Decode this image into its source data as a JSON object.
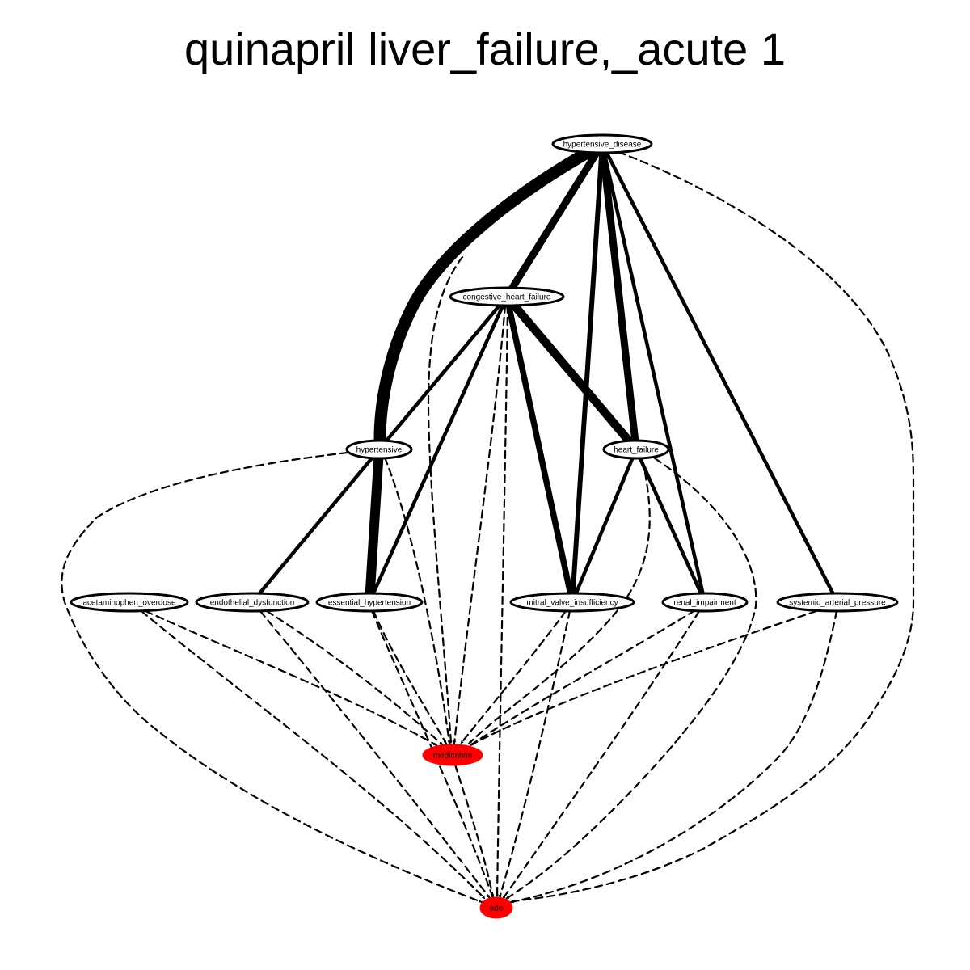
{
  "title": "quinapril liver_failure,_acute 1",
  "nodes": [
    {
      "id": "hypertensive_disease",
      "label": "hypertensive_disease",
      "fill": "#ffffff"
    },
    {
      "id": "congestive_heart_failure",
      "label": "congestive_heart_failure",
      "fill": "#ffffff"
    },
    {
      "id": "hypertensive",
      "label": "hypertensive",
      "fill": "#ffffff"
    },
    {
      "id": "heart_failure",
      "label": "heart_failure",
      "fill": "#ffffff"
    },
    {
      "id": "acetaminophen_overdose",
      "label": "acetaminophen_overdose",
      "fill": "#ffffff"
    },
    {
      "id": "endothelial_dysfunction",
      "label": "endothelial_dysfunction",
      "fill": "#ffffff"
    },
    {
      "id": "essential_hypertension",
      "label": "essential_hypertension",
      "fill": "#ffffff"
    },
    {
      "id": "mitral_valve_insufficiency",
      "label": "mitral_valve_insufficiency",
      "fill": "#ffffff"
    },
    {
      "id": "renal_impairment",
      "label": "renal_impairment",
      "fill": "#ffffff"
    },
    {
      "id": "systemic_arterial_pressure",
      "label": "systemic_arterial_pressure",
      "fill": "#ffffff"
    },
    {
      "id": "medication",
      "label": "medication",
      "fill": "#ff0000"
    },
    {
      "id": "ade",
      "label": "ade",
      "fill": "#ff0000"
    }
  ],
  "edges": [
    {
      "from": "hypertensive_disease",
      "to": "hypertensive",
      "style": "solid",
      "weight": 5
    },
    {
      "from": "hypertensive_disease",
      "to": "congestive_heart_failure",
      "style": "solid",
      "weight": 3
    },
    {
      "from": "hypertensive_disease",
      "to": "mitral_valve_insufficiency",
      "style": "solid",
      "weight": 2
    },
    {
      "from": "hypertensive_disease",
      "to": "heart_failure",
      "style": "solid",
      "weight": 3
    },
    {
      "from": "hypertensive_disease",
      "to": "renal_impairment",
      "style": "solid",
      "weight": 1.5
    },
    {
      "from": "hypertensive_disease",
      "to": "systemic_arterial_pressure",
      "style": "solid",
      "weight": 1.5
    },
    {
      "from": "hypertensive_disease",
      "to": "ade",
      "style": "dashed",
      "weight": 1
    },
    {
      "from": "hypertensive_disease",
      "to": "medication",
      "style": "dashed",
      "weight": 1
    },
    {
      "from": "congestive_heart_failure",
      "to": "hypertensive",
      "style": "solid",
      "weight": 1.5
    },
    {
      "from": "congestive_heart_failure",
      "to": "essential_hypertension",
      "style": "solid",
      "weight": 1.5
    },
    {
      "from": "congestive_heart_failure",
      "to": "mitral_valve_insufficiency",
      "style": "solid",
      "weight": 2.5
    },
    {
      "from": "congestive_heart_failure",
      "to": "heart_failure",
      "style": "solid",
      "weight": 3.5
    },
    {
      "from": "congestive_heart_failure",
      "to": "medication",
      "style": "dashed",
      "weight": 1
    },
    {
      "from": "congestive_heart_failure",
      "to": "ade",
      "style": "dashed",
      "weight": 1
    },
    {
      "from": "hypertensive",
      "to": "endothelial_dysfunction",
      "style": "solid",
      "weight": 1.5
    },
    {
      "from": "hypertensive",
      "to": "essential_hypertension",
      "style": "solid",
      "weight": 4
    },
    {
      "from": "hypertensive",
      "to": "medication",
      "style": "dashed",
      "weight": 1
    },
    {
      "from": "hypertensive",
      "to": "ade",
      "style": "dashed",
      "weight": 1
    },
    {
      "from": "heart_failure",
      "to": "mitral_valve_insufficiency",
      "style": "solid",
      "weight": 1.5
    },
    {
      "from": "heart_failure",
      "to": "renal_impairment",
      "style": "solid",
      "weight": 1.5
    },
    {
      "from": "heart_failure",
      "to": "medication",
      "style": "dashed",
      "weight": 1
    },
    {
      "from": "heart_failure",
      "to": "ade",
      "style": "dashed",
      "weight": 1
    },
    {
      "from": "acetaminophen_overdose",
      "to": "medication",
      "style": "dashed",
      "weight": 1
    },
    {
      "from": "acetaminophen_overdose",
      "to": "ade",
      "style": "dashed",
      "weight": 1
    },
    {
      "from": "endothelial_dysfunction",
      "to": "medication",
      "style": "dashed",
      "weight": 1
    },
    {
      "from": "endothelial_dysfunction",
      "to": "ade",
      "style": "dashed",
      "weight": 1
    },
    {
      "from": "essential_hypertension",
      "to": "medication",
      "style": "dashed",
      "weight": 1
    },
    {
      "from": "essential_hypertension",
      "to": "ade",
      "style": "dashed",
      "weight": 1
    },
    {
      "from": "mitral_valve_insufficiency",
      "to": "medication",
      "style": "dashed",
      "weight": 1
    },
    {
      "from": "mitral_valve_insufficiency",
      "to": "ade",
      "style": "dashed",
      "weight": 1
    },
    {
      "from": "renal_impairment",
      "to": "medication",
      "style": "dashed",
      "weight": 1
    },
    {
      "from": "renal_impairment",
      "to": "ade",
      "style": "dashed",
      "weight": 1
    },
    {
      "from": "systemic_arterial_pressure",
      "to": "medication",
      "style": "dashed",
      "weight": 1
    },
    {
      "from": "systemic_arterial_pressure",
      "to": "ade",
      "style": "dashed",
      "weight": 1
    },
    {
      "from": "medication",
      "to": "ade",
      "style": "dashed",
      "weight": 1
    }
  ]
}
